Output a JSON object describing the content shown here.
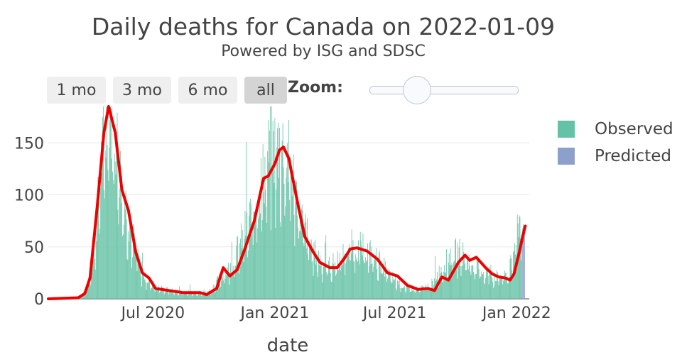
{
  "header": {
    "title": "Daily deaths for Canada on 2022-01-09",
    "subtitle": "Powered by ISG and SDSC"
  },
  "controls": {
    "range_buttons": [
      {
        "label": "1 mo",
        "active": false
      },
      {
        "label": "3 mo",
        "active": false
      },
      {
        "label": "6 mo",
        "active": false
      },
      {
        "label": "all",
        "active": true
      }
    ],
    "zoom_label": "Zoom:"
  },
  "legend": [
    {
      "label": "Observed",
      "color": "#66c2a5"
    },
    {
      "label": "Predicted",
      "color": "#8da0cb"
    }
  ],
  "chart_data": {
    "type": "bar",
    "title": "Daily deaths for Canada on 2022-01-09",
    "xlabel": "date",
    "ylabel": "",
    "x_range": [
      "2020-01-25",
      "2022-01-20"
    ],
    "ylim": [
      0,
      185
    ],
    "yticks": [
      0,
      50,
      100,
      150
    ],
    "xticks": [
      {
        "date": "2020-07-01",
        "label": "Jul 2020"
      },
      {
        "date": "2021-01-01",
        "label": "Jan 2021"
      },
      {
        "date": "2021-07-01",
        "label": "Jul 2021"
      },
      {
        "date": "2022-01-01",
        "label": "Jan 2022"
      }
    ],
    "grid": true,
    "legend_position": "right",
    "observed_start": "2020-03-10",
    "observed_end": "2022-01-08",
    "observed_anchors": [
      [
        "2020-03-10",
        1
      ],
      [
        "2020-03-25",
        10
      ],
      [
        "2020-04-05",
        60
      ],
      [
        "2020-04-15",
        140
      ],
      [
        "2020-04-25",
        180
      ],
      [
        "2020-05-05",
        165
      ],
      [
        "2020-05-15",
        110
      ],
      [
        "2020-05-25",
        80
      ],
      [
        "2020-06-05",
        45
      ],
      [
        "2020-06-15",
        25
      ],
      [
        "2020-07-01",
        12
      ],
      [
        "2020-08-01",
        8
      ],
      [
        "2020-09-01",
        6
      ],
      [
        "2020-09-25",
        8
      ],
      [
        "2020-10-10",
        20
      ],
      [
        "2020-10-25",
        30
      ],
      [
        "2020-11-10",
        55
      ],
      [
        "2020-11-25",
        80
      ],
      [
        "2020-12-10",
        110
      ],
      [
        "2020-12-25",
        145
      ],
      [
        "2021-01-10",
        150
      ],
      [
        "2021-01-25",
        130
      ],
      [
        "2021-02-10",
        80
      ],
      [
        "2021-02-25",
        50
      ],
      [
        "2021-03-10",
        38
      ],
      [
        "2021-03-25",
        32
      ],
      [
        "2021-04-10",
        40
      ],
      [
        "2021-04-25",
        52
      ],
      [
        "2021-05-10",
        50
      ],
      [
        "2021-05-25",
        45
      ],
      [
        "2021-06-10",
        35
      ],
      [
        "2021-06-25",
        22
      ],
      [
        "2021-07-10",
        14
      ],
      [
        "2021-07-25",
        10
      ],
      [
        "2021-08-10",
        10
      ],
      [
        "2021-08-25",
        14
      ],
      [
        "2021-09-10",
        30
      ],
      [
        "2021-09-25",
        45
      ],
      [
        "2021-10-10",
        45
      ],
      [
        "2021-10-25",
        35
      ],
      [
        "2021-11-10",
        28
      ],
      [
        "2021-11-25",
        22
      ],
      [
        "2021-12-10",
        22
      ],
      [
        "2021-12-20",
        25
      ],
      [
        "2021-12-28",
        45
      ],
      [
        "2022-01-04",
        75
      ],
      [
        "2022-01-08",
        80
      ]
    ],
    "predicted": {
      "start": "2022-01-09",
      "end": "2022-01-13",
      "values": [
        62,
        68,
        72,
        70,
        66
      ]
    },
    "trend_line": {
      "color": "#ee0000",
      "points": [
        [
          "2020-01-25",
          0
        ],
        [
          "2020-03-10",
          1
        ],
        [
          "2020-03-20",
          5
        ],
        [
          "2020-03-28",
          20
        ],
        [
          "2020-04-08",
          90
        ],
        [
          "2020-04-18",
          160
        ],
        [
          "2020-04-25",
          185
        ],
        [
          "2020-05-05",
          160
        ],
        [
          "2020-05-15",
          105
        ],
        [
          "2020-05-25",
          85
        ],
        [
          "2020-06-05",
          45
        ],
        [
          "2020-06-15",
          25
        ],
        [
          "2020-06-25",
          20
        ],
        [
          "2020-07-05",
          10
        ],
        [
          "2020-07-25",
          8
        ],
        [
          "2020-08-15",
          6
        ],
        [
          "2020-09-10",
          6
        ],
        [
          "2020-09-20",
          4
        ],
        [
          "2020-10-05",
          10
        ],
        [
          "2020-10-15",
          30
        ],
        [
          "2020-10-25",
          22
        ],
        [
          "2020-11-05",
          28
        ],
        [
          "2020-11-15",
          45
        ],
        [
          "2020-12-01",
          75
        ],
        [
          "2020-12-15",
          116
        ],
        [
          "2020-12-22",
          118
        ],
        [
          "2021-01-01",
          130
        ],
        [
          "2021-01-08",
          143
        ],
        [
          "2021-01-14",
          146
        ],
        [
          "2021-01-22",
          135
        ],
        [
          "2021-02-05",
          90
        ],
        [
          "2021-02-15",
          60
        ],
        [
          "2021-02-28",
          45
        ],
        [
          "2021-03-10",
          35
        ],
        [
          "2021-03-25",
          30
        ],
        [
          "2021-04-05",
          30
        ],
        [
          "2021-04-15",
          38
        ],
        [
          "2021-04-25",
          48
        ],
        [
          "2021-05-05",
          49
        ],
        [
          "2021-05-20",
          46
        ],
        [
          "2021-06-05",
          38
        ],
        [
          "2021-06-20",
          25
        ],
        [
          "2021-07-05",
          22
        ],
        [
          "2021-07-20",
          13
        ],
        [
          "2021-08-05",
          9
        ],
        [
          "2021-08-20",
          10
        ],
        [
          "2021-08-30",
          8
        ],
        [
          "2021-09-10",
          21
        ],
        [
          "2021-09-20",
          18
        ],
        [
          "2021-10-05",
          35
        ],
        [
          "2021-10-15",
          42
        ],
        [
          "2021-10-22",
          37
        ],
        [
          "2021-11-01",
          40
        ],
        [
          "2021-11-15",
          30
        ],
        [
          "2021-11-25",
          24
        ],
        [
          "2021-12-05",
          21
        ],
        [
          "2021-12-15",
          20
        ],
        [
          "2021-12-22",
          18
        ],
        [
          "2021-12-28",
          24
        ],
        [
          "2022-01-05",
          45
        ],
        [
          "2022-01-10",
          60
        ],
        [
          "2022-01-14",
          70
        ]
      ]
    }
  }
}
